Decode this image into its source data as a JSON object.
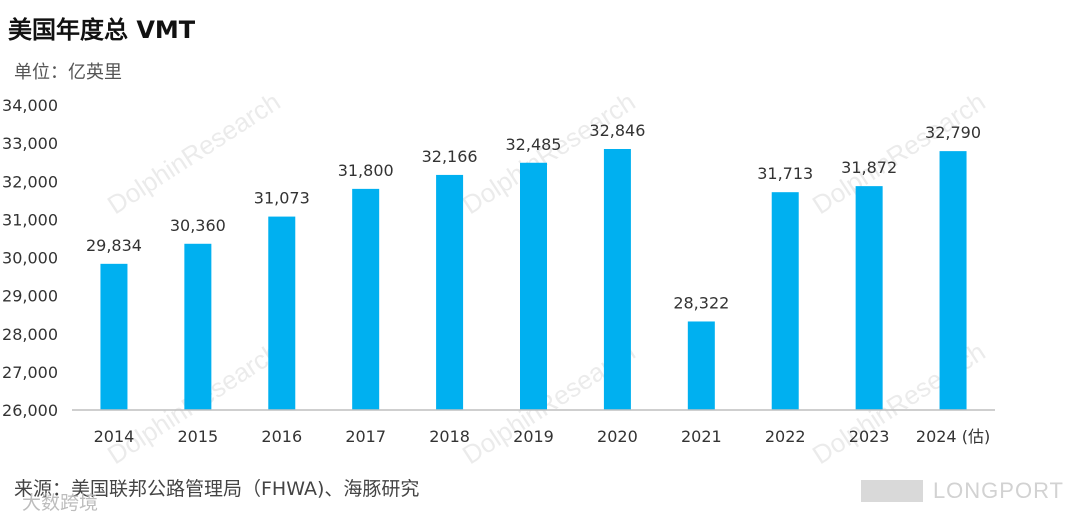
{
  "title": "美国年度总 VMT",
  "unit_label": "单位：亿英里",
  "source": "来源：美国联邦公路管理局（FHWA)、海豚研究",
  "watermark": {
    "text": "DolphinResearch",
    "bottom_left": "大数跨境",
    "brand": "LONGPORT"
  },
  "colors": {
    "bar": "#00b0f0",
    "axis": "#bfbfbf",
    "text": "#333333"
  },
  "chart_data": {
    "type": "bar",
    "categories": [
      "2014",
      "2015",
      "2016",
      "2017",
      "2018",
      "2019",
      "2020",
      "2021",
      "2022",
      "2023",
      "2024 (估)"
    ],
    "values": [
      29834,
      30360,
      31073,
      31800,
      32166,
      32485,
      32846,
      28322,
      31713,
      31872,
      32790
    ],
    "data_labels": [
      "29,834",
      "30,360",
      "31,073",
      "31,800",
      "32,166",
      "32,485",
      "32,846",
      "28,322",
      "31,713",
      "31,872",
      "32,790"
    ],
    "ylim": [
      26000,
      34000
    ],
    "yticks": [
      "26,000",
      "27,000",
      "28,000",
      "29,000",
      "30,000",
      "31,000",
      "32,000",
      "33,000",
      "34,000"
    ],
    "grid": false,
    "legend": "none"
  }
}
